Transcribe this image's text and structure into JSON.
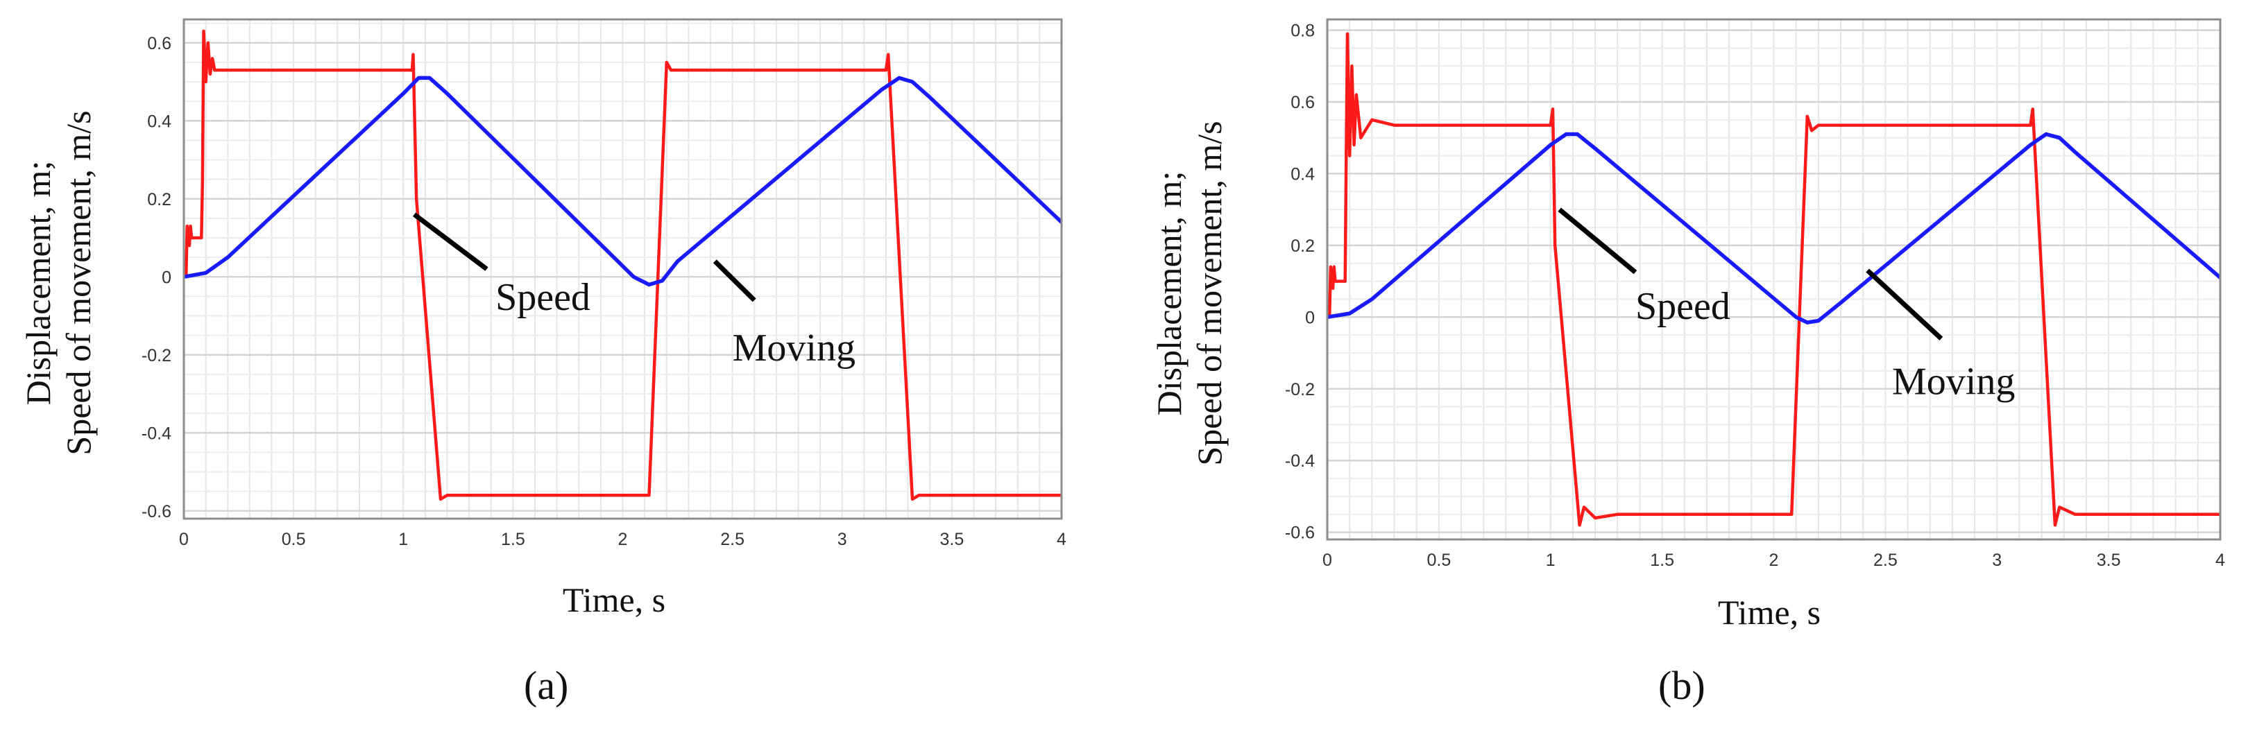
{
  "chart_data": [
    {
      "type": "line",
      "panel_label": "(a)",
      "xlabel": "Time, s",
      "ylabel_lines": [
        "Displacement, m;",
        "Speed of movement, m/s"
      ],
      "xlim": [
        0,
        4
      ],
      "ylim": [
        -0.62,
        0.66
      ],
      "xticks": [
        0,
        0.5,
        1,
        1.5,
        2,
        2.5,
        3,
        3.5,
        4
      ],
      "xtick_labels": [
        "0",
        "0.5",
        "1",
        "1.5",
        "2",
        "2.5",
        "3",
        "3.5",
        "4"
      ],
      "yticks": [
        0.6,
        0.4,
        0.2,
        0,
        -0.2,
        -0.4,
        -0.6
      ],
      "ytick_labels": [
        "0.6",
        "0.4",
        "0.2",
        "0",
        "-0.2",
        "-0.4",
        "-0.6"
      ],
      "grid": true,
      "legend": "none",
      "series": [
        {
          "color": "#ff1a1a",
          "x": [
            0,
            0.01,
            0.015,
            0.025,
            0.03,
            0.035,
            0.08,
            0.085,
            0.09,
            0.1,
            0.11,
            0.12,
            0.13,
            0.14,
            0.15,
            1.04,
            1.045,
            1.06,
            1.17,
            1.2,
            2.12,
            2.2,
            2.22,
            3.2,
            3.21,
            3.32,
            3.35,
            4
          ],
          "y": [
            0,
            0,
            0.13,
            0.08,
            0.13,
            0.1,
            0.1,
            0.25,
            0.63,
            0.5,
            0.6,
            0.52,
            0.56,
            0.53,
            0.53,
            0.53,
            0.57,
            0.2,
            -0.57,
            -0.56,
            -0.56,
            0.55,
            0.53,
            0.53,
            0.57,
            -0.57,
            -0.56,
            -0.56
          ]
        },
        {
          "color": "#1a1aff",
          "x": [
            0,
            0.1,
            0.2,
            1.0,
            1.07,
            1.12,
            1.2,
            2.05,
            2.12,
            2.18,
            2.25,
            3.18,
            3.26,
            3.32,
            3.4,
            4
          ],
          "y": [
            0,
            0.01,
            0.05,
            0.47,
            0.51,
            0.51,
            0.47,
            0.0,
            -0.02,
            -0.01,
            0.04,
            0.48,
            0.51,
            0.5,
            0.46,
            0.14
          ]
        }
      ],
      "annotations": [
        {
          "text": "Speed",
          "x": 1.05,
          "y": 0.16,
          "tx": 1.38,
          "ty": 0.02,
          "lx": 1.42,
          "ly": -0.085
        },
        {
          "text": "Moving",
          "x": 2.42,
          "y": 0.04,
          "tx": 2.6,
          "ty": -0.06,
          "lx": 2.5,
          "ly": -0.215
        }
      ]
    },
    {
      "type": "line",
      "panel_label": "(b)",
      "xlabel": "Time, s",
      "ylabel_lines": [
        "Displacement, m;",
        "Speed of movement, m/s"
      ],
      "xlim": [
        0,
        4
      ],
      "ylim": [
        -0.62,
        0.83
      ],
      "xticks": [
        0,
        0.5,
        1,
        1.5,
        2,
        2.5,
        3,
        3.5,
        4
      ],
      "xtick_labels": [
        "0",
        "0.5",
        "1",
        "1.5",
        "2",
        "2.5",
        "3",
        "3.5",
        "4"
      ],
      "yticks": [
        0.8,
        0.6,
        0.4,
        0.2,
        0,
        -0.2,
        -0.4,
        -0.6
      ],
      "ytick_labels": [
        "0.8",
        "0.6",
        "0.4",
        "0.2",
        "0",
        "-0.2",
        "-0.4",
        "-0.6"
      ],
      "grid": true,
      "legend": "none",
      "series": [
        {
          "color": "#ff1a1a",
          "x": [
            0,
            0.01,
            0.015,
            0.025,
            0.03,
            0.035,
            0.08,
            0.085,
            0.09,
            0.1,
            0.11,
            0.12,
            0.13,
            0.15,
            0.2,
            0.3,
            1.0,
            1.01,
            1.02,
            1.13,
            1.15,
            1.2,
            1.3,
            2.08,
            2.15,
            2.17,
            2.2,
            3.15,
            3.16,
            3.26,
            3.28,
            3.35,
            4
          ],
          "y": [
            0,
            0,
            0.14,
            0.08,
            0.14,
            0.1,
            0.1,
            0.45,
            0.79,
            0.45,
            0.7,
            0.48,
            0.62,
            0.5,
            0.55,
            0.535,
            0.535,
            0.58,
            0.2,
            -0.58,
            -0.53,
            -0.56,
            -0.55,
            -0.55,
            0.56,
            0.52,
            0.535,
            0.535,
            0.58,
            -0.58,
            -0.53,
            -0.55,
            -0.55
          ]
        },
        {
          "color": "#1a1aff",
          "x": [
            0,
            0.1,
            0.2,
            1.0,
            1.07,
            1.12,
            1.2,
            2.1,
            2.15,
            2.2,
            2.3,
            3.15,
            3.22,
            3.28,
            3.35,
            4
          ],
          "y": [
            0,
            0.01,
            0.05,
            0.48,
            0.51,
            0.51,
            0.47,
            0.0,
            -0.015,
            -0.01,
            0.04,
            0.48,
            0.51,
            0.5,
            0.46,
            0.11
          ]
        }
      ],
      "annotations": [
        {
          "text": "Speed",
          "x": 1.04,
          "y": 0.3,
          "tx": 1.38,
          "ty": 0.125,
          "lx": 1.38,
          "ly": -0.005
        },
        {
          "text": "Moving",
          "x": 2.42,
          "y": 0.13,
          "tx": 2.75,
          "ty": -0.06,
          "lx": 2.53,
          "ly": -0.215
        }
      ]
    }
  ]
}
